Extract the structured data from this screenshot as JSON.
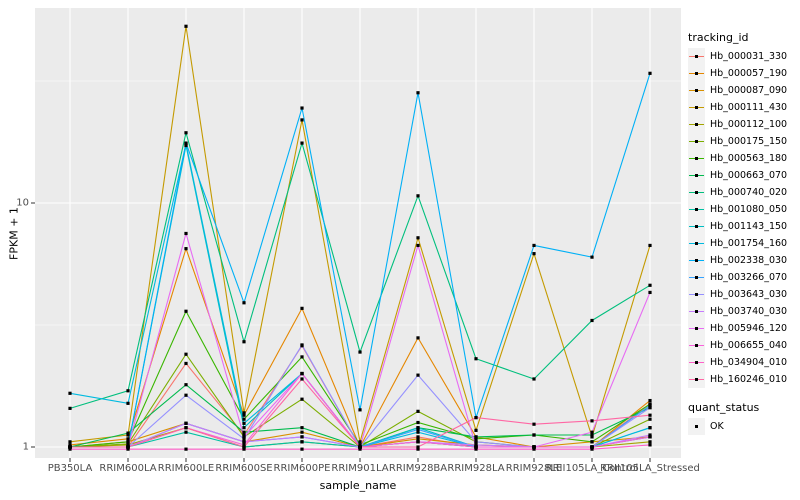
{
  "figure": {
    "background": "#FFFFFF",
    "panel_background": "#EBEBEB",
    "gridline_color": "#FFFFFF",
    "tick_color": "#333333",
    "axis_text_color": "#4D4D4D"
  },
  "chart_data": {
    "type": "line",
    "title": "",
    "xlabel": "sample_name",
    "ylabel": "FPKM + 1",
    "yscale": "log10",
    "ylim": [
      0.9,
      62
    ],
    "grid": "on",
    "legend_position": "right",
    "yticks": [
      {
        "label": "1",
        "value": 1
      },
      {
        "label": "10",
        "value": 10
      }
    ],
    "minor_gridlines_at": [
      3.162,
      31.62
    ],
    "categories": [
      "PB350LA",
      "RRIM600LA",
      "RRIM600LE",
      "RRIM600SE",
      "RRIM600PE",
      "RRIM901LA",
      "RRIM928BA",
      "RRIM928LA",
      "RRIM928LE",
      "RRII105LA_Control",
      "RRII105LA_Stressed"
    ],
    "point_color": "#000000",
    "series": [
      {
        "name": "Hb_000031_330",
        "color": "#F8766D",
        "values": [
          1.0,
          1.0,
          2.2,
          1.12,
          2.6,
          1.0,
          1.1,
          1.0,
          1.0,
          1.0,
          1.5
        ]
      },
      {
        "name": "Hb_000057_190",
        "color": "#E58700",
        "values": [
          1.02,
          1.08,
          6.5,
          1.35,
          3.7,
          1.0,
          2.8,
          1.1,
          1.0,
          1.0,
          1.55
        ]
      },
      {
        "name": "Hb_000087_090",
        "color": "#D89000",
        "values": [
          1.0,
          1.05,
          1.25,
          1.05,
          1.15,
          1.0,
          1.08,
          1.02,
          1.0,
          1.05,
          1.1
        ]
      },
      {
        "name": "Hb_000111_430",
        "color": "#C49A00",
        "values": [
          1.05,
          1.12,
          53.0,
          1.38,
          21.9,
          1.05,
          7.2,
          1.17,
          6.2,
          1.1,
          6.7
        ]
      },
      {
        "name": "Hb_000112_100",
        "color": "#A3A500",
        "values": [
          1.0,
          1.02,
          1.2,
          1.0,
          1.05,
          1.0,
          1.05,
          1.0,
          1.0,
          1.0,
          1.05
        ]
      },
      {
        "name": "Hb_000175_150",
        "color": "#7CAE00",
        "values": [
          1.0,
          1.03,
          2.4,
          1.1,
          1.57,
          1.0,
          1.4,
          1.05,
          1.0,
          1.0,
          1.3
        ]
      },
      {
        "name": "Hb_000563_180",
        "color": "#39B600",
        "values": [
          1.0,
          1.05,
          3.6,
          1.3,
          2.34,
          1.02,
          1.26,
          1.08,
          1.12,
          1.05,
          1.5
        ]
      },
      {
        "name": "Hb_000663_070",
        "color": "#00BB4E",
        "values": [
          1.0,
          1.14,
          1.8,
          1.15,
          1.2,
          1.0,
          1.2,
          1.1,
          1.12,
          1.12,
          1.45
        ]
      },
      {
        "name": "Hb_000740_020",
        "color": "#00BF7D",
        "values": [
          1.44,
          1.7,
          19.4,
          2.7,
          17.6,
          2.45,
          10.7,
          2.3,
          1.9,
          3.3,
          4.6
        ]
      },
      {
        "name": "Hb_001080_050",
        "color": "#00C1A3",
        "values": [
          1.0,
          1.0,
          1.15,
          1.0,
          1.05,
          1.0,
          1.05,
          1.0,
          1.0,
          1.0,
          1.1
        ]
      },
      {
        "name": "Hb_001143_150",
        "color": "#00BFC4",
        "values": [
          1.0,
          1.0,
          17.2,
          1.2,
          2.0,
          1.0,
          1.2,
          1.0,
          1.0,
          1.0,
          1.2
        ]
      },
      {
        "name": "Hb_001754_160",
        "color": "#00BAE0",
        "values": [
          1.66,
          1.51,
          17.5,
          1.25,
          2.0,
          1.0,
          1.15,
          1.0,
          1.0,
          1.0,
          1.2
        ]
      },
      {
        "name": "Hb_002338_030",
        "color": "#00B0F6",
        "values": [
          1.0,
          1.0,
          17.6,
          3.9,
          24.5,
          1.42,
          28.3,
          1.32,
          6.7,
          6.0,
          34.0
        ]
      },
      {
        "name": "Hb_003266_070",
        "color": "#35A2FF",
        "values": [
          1.0,
          1.0,
          1.25,
          1.05,
          1.1,
          1.0,
          1.18,
          1.0,
          1.0,
          1.0,
          1.48
        ]
      },
      {
        "name": "Hb_003643_030",
        "color": "#9590FF",
        "values": [
          1.0,
          1.0,
          1.63,
          1.08,
          2.62,
          1.0,
          1.97,
          1.05,
          1.0,
          1.0,
          1.45
        ]
      },
      {
        "name": "Hb_003740_030",
        "color": "#C77CFF",
        "values": [
          1.0,
          1.0,
          1.25,
          1.05,
          1.1,
          1.0,
          1.05,
          1.02,
          1.0,
          1.0,
          1.12
        ]
      },
      {
        "name": "Hb_005946_120",
        "color": "#E76BF3",
        "values": [
          1.0,
          1.0,
          7.5,
          1.1,
          2.0,
          1.0,
          6.7,
          1.0,
          1.0,
          1.15,
          4.3
        ]
      },
      {
        "name": "Hb_006655_040",
        "color": "#FA62DB",
        "values": [
          1.0,
          1.0,
          1.2,
          1.02,
          2.0,
          1.0,
          1.05,
          1.0,
          1.0,
          1.0,
          1.1
        ]
      },
      {
        "name": "Hb_034904_010",
        "color": "#FF61C9",
        "values": [
          0.98,
          0.98,
          0.98,
          0.98,
          0.98,
          0.98,
          0.98,
          0.98,
          0.98,
          0.98,
          1.02
        ]
      },
      {
        "name": "Hb_160246_010",
        "color": "#FF67A4",
        "values": [
          1.0,
          1.0,
          1.2,
          1.0,
          1.9,
          1.0,
          1.0,
          1.32,
          1.24,
          1.28,
          1.35
        ]
      }
    ],
    "legend": {
      "tracking_title": "tracking_id",
      "quant_title": "quant_status",
      "quant_items": [
        {
          "label": "OK"
        }
      ]
    }
  }
}
